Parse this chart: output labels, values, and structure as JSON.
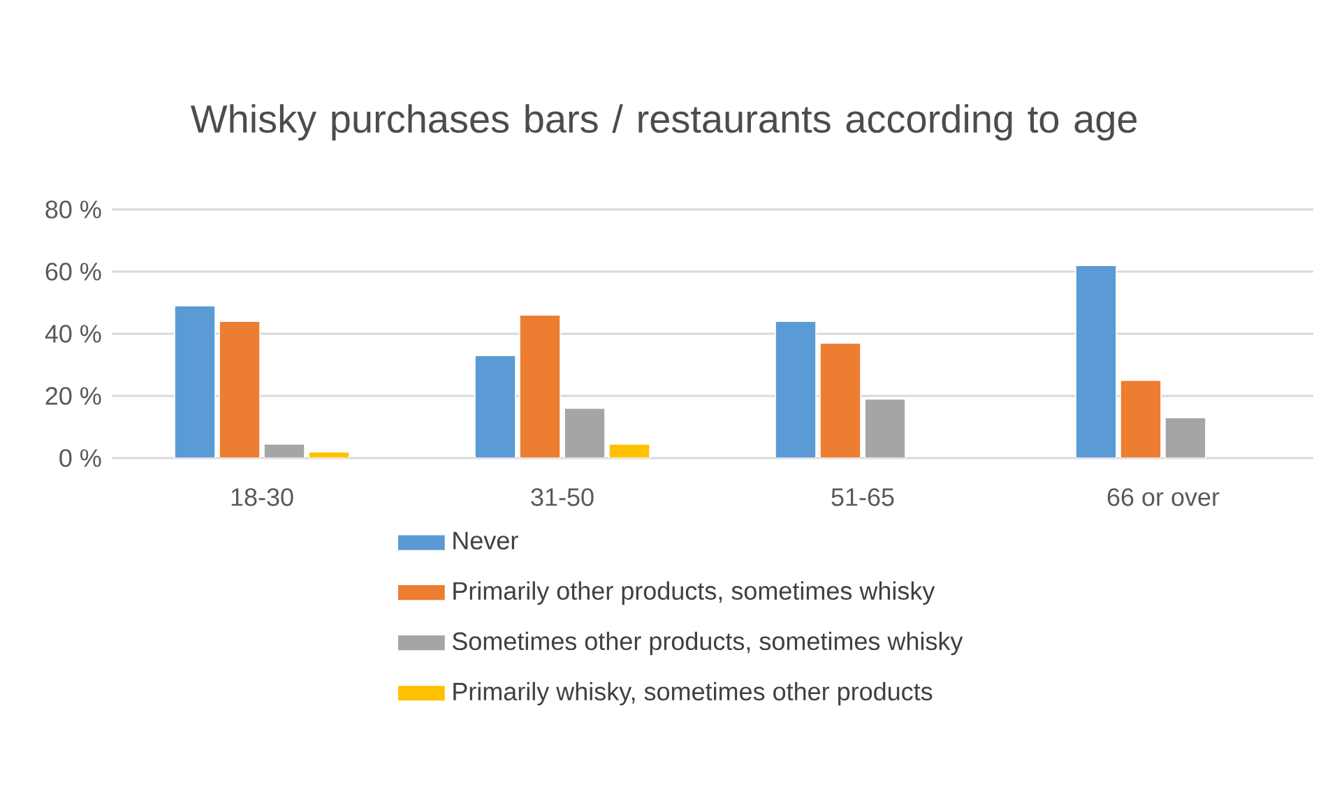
{
  "chart_data": {
    "type": "bar",
    "title": "Whisky purchases bars / restaurants according to age",
    "categories": [
      "18-30",
      "31-50",
      "51-65",
      "66 or over"
    ],
    "series": [
      {
        "name": "Never",
        "color": "#5b9bd5",
        "values": [
          49,
          33,
          44,
          62
        ]
      },
      {
        "name": "Primarily other products, sometimes whisky",
        "color": "#ed7d31",
        "values": [
          44,
          46,
          37,
          25
        ]
      },
      {
        "name": "Sometimes other products, sometimes whisky",
        "color": "#a5a5a5",
        "values": [
          4.5,
          16,
          19,
          13
        ]
      },
      {
        "name": "Primarily whisky, sometimes other products",
        "color": "#ffc000",
        "values": [
          2,
          4.5,
          null,
          null
        ]
      }
    ],
    "ylim": [
      0,
      80
    ],
    "yticks": [
      {
        "value": 0,
        "label": "0 %"
      },
      {
        "value": 20,
        "label": "20 %"
      },
      {
        "value": 40,
        "label": "40 %"
      },
      {
        "value": 60,
        "label": "60 %"
      },
      {
        "value": 80,
        "label": "80 %"
      }
    ],
    "grid": "y",
    "legend": "bottom"
  }
}
